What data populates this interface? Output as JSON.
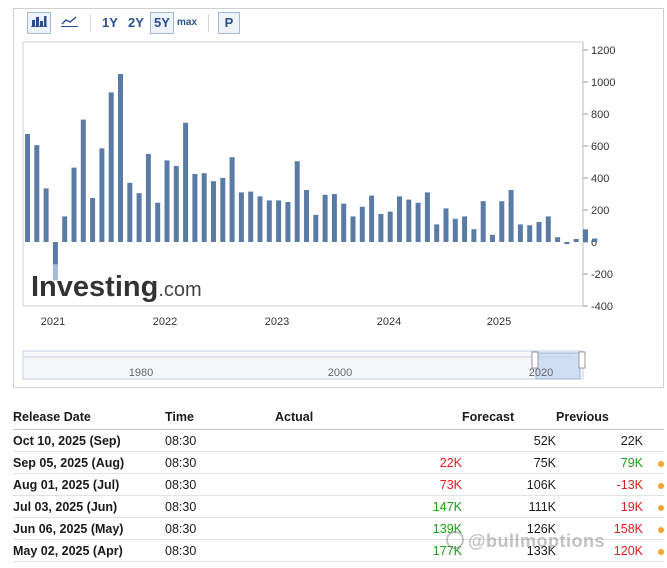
{
  "toolbar": {
    "icons": [
      "bar-chart-icon",
      "line-chart-icon"
    ],
    "ranges": [
      {
        "label": "1Y",
        "selected": false
      },
      {
        "label": "2Y",
        "selected": false
      },
      {
        "label": "5Y",
        "selected": true
      },
      {
        "label": "max",
        "selected": false
      }
    ],
    "p_label": "P"
  },
  "chart_data": {
    "type": "bar",
    "x_labels": [
      "2021",
      "2022",
      "2023",
      "2024",
      "2025"
    ],
    "y_ticks": [
      1200,
      1000,
      800,
      600,
      400,
      200,
      0,
      -200,
      -400
    ],
    "ylim": [
      -400,
      1200
    ],
    "values": [
      675,
      605,
      335,
      -140,
      160,
      465,
      765,
      275,
      585,
      935,
      1050,
      370,
      305,
      550,
      245,
      510,
      475,
      745,
      425,
      430,
      380,
      400,
      530,
      310,
      315,
      285,
      260,
      260,
      250,
      505,
      325,
      170,
      295,
      300,
      240,
      160,
      220,
      290,
      175,
      190,
      285,
      265,
      245,
      310,
      110,
      210,
      145,
      160,
      80,
      255,
      45,
      255,
      325,
      110,
      105,
      125,
      160,
      30,
      -13,
      19,
      79,
      22
    ],
    "bar_color": "#5b7ba7",
    "negative_recent_color": "#a6bad7",
    "watermark": "Investing.com",
    "navigator_labels": [
      "1980",
      "2000",
      "2020"
    ]
  },
  "table": {
    "headers": {
      "date": "Release Date",
      "time": "Time",
      "actual": "Actual",
      "forecast": "Forecast",
      "previous": "Previous"
    },
    "rows": [
      {
        "date": "Oct 10, 2025 (Sep)",
        "time": "08:30",
        "actual": "",
        "actual_status": "",
        "forecast": "52K",
        "previous": "22K",
        "previous_status": "",
        "dot": false
      },
      {
        "date": "Sep 05, 2025 (Aug)",
        "time": "08:30",
        "actual": "22K",
        "actual_status": "neg",
        "forecast": "75K",
        "previous": "79K",
        "previous_status": "pos",
        "dot": true
      },
      {
        "date": "Aug 01, 2025 (Jul)",
        "time": "08:30",
        "actual": "73K",
        "actual_status": "neg",
        "forecast": "106K",
        "previous": "-13K",
        "previous_status": "neg",
        "dot": true
      },
      {
        "date": "Jul 03, 2025 (Jun)",
        "time": "08:30",
        "actual": "147K",
        "actual_status": "pos",
        "forecast": "111K",
        "previous": "19K",
        "previous_status": "neg",
        "dot": true
      },
      {
        "date": "Jun 06, 2025 (May)",
        "time": "08:30",
        "actual": "139K",
        "actual_status": "pos",
        "forecast": "126K",
        "previous": "158K",
        "previous_status": "neg",
        "dot": true
      },
      {
        "date": "May 02, 2025 (Apr)",
        "time": "08:30",
        "actual": "177K",
        "actual_status": "pos",
        "forecast": "133K",
        "previous": "120K",
        "previous_status": "neg",
        "dot": true
      }
    ]
  },
  "watermark_bottom": "@bullmoptions",
  "colors": {
    "positive": "#1aa01a",
    "negative": "#e01e1e",
    "accent": "#2a4f8d",
    "dot": "#f2a52a"
  }
}
